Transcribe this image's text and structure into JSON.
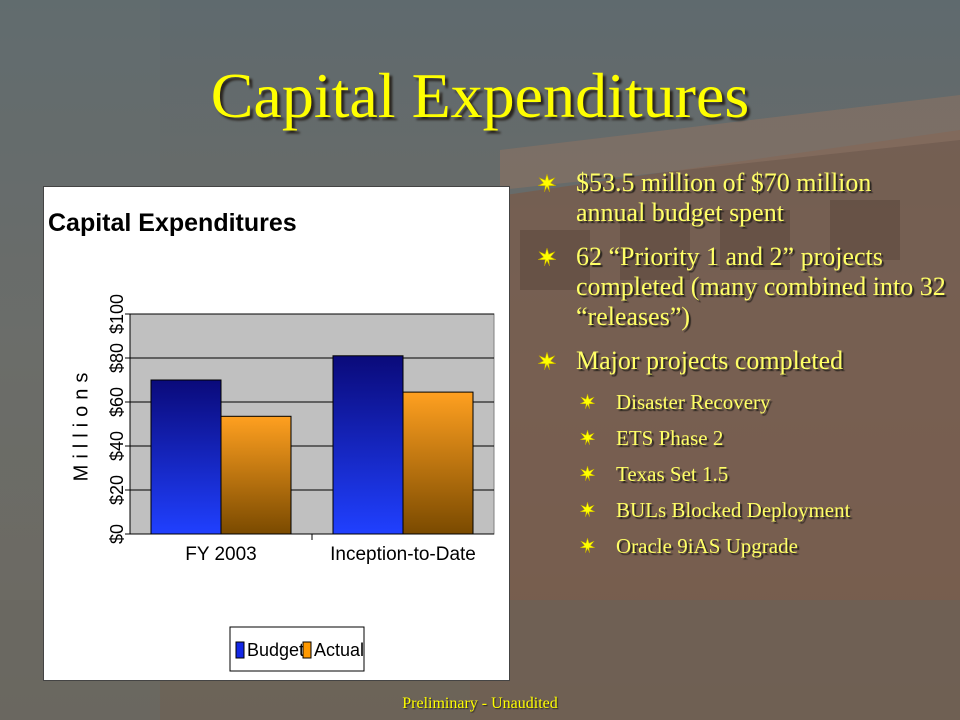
{
  "slide": {
    "title": "Capital Expenditures",
    "footer": "Preliminary - Unaudited"
  },
  "bullets": [
    {
      "text": "$53.5 million of $70 million annual budget spent"
    },
    {
      "text": "62 “Priority 1 and 2” projects completed (many combined into 32 “releases”)"
    },
    {
      "text": "Major projects completed",
      "items": [
        "Disaster Recovery",
        "ETS Phase 2",
        "Texas Set 1.5",
        "BULs Blocked Deployment",
        "Oracle 9iAS Upgrade"
      ]
    }
  ],
  "chart_data": {
    "type": "bar",
    "title": "Capital Expenditures",
    "xlabel": "",
    "ylabel": "Millions",
    "categories": [
      "FY 2003",
      "Inception-to-Date"
    ],
    "series": [
      {
        "name": "Budget",
        "values": [
          70,
          81
        ],
        "color": "#1428e6"
      },
      {
        "name": "Actual",
        "values": [
          53.5,
          64.5
        ],
        "color": "#ff9900"
      }
    ],
    "ylim": [
      0,
      100
    ],
    "yticks": [
      0,
      20,
      40,
      60,
      80,
      100
    ],
    "ytick_labels": [
      "$0",
      "$20",
      "$40",
      "$60",
      "$80",
      "$100"
    ],
    "grid": true,
    "legend": "bottom"
  },
  "colors": {
    "title": "#ffff00",
    "bullet_text": "#ffff66",
    "plot_background": "#c0c0c0"
  },
  "icons": {
    "bullet": "starburst-bullet-icon"
  }
}
